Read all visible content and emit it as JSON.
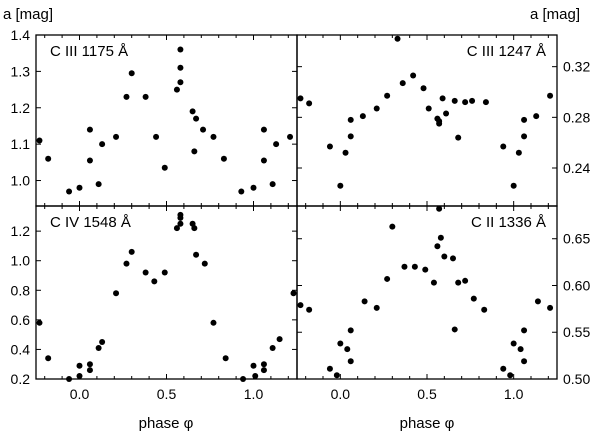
{
  "figure": {
    "ylabel_left": "a [mag]",
    "ylabel_right": "a [mag]",
    "xlabel_bottom_left": "phase φ",
    "xlabel_bottom_right": "phase φ",
    "x_ticks": [
      "0.0",
      "0.5",
      "1.0"
    ],
    "x_tick_values": [
      0.0,
      0.5,
      1.0
    ]
  },
  "chart_data": [
    {
      "type": "scatter",
      "title": "C III 1175 Å",
      "xlim": [
        -0.25,
        1.25
      ],
      "ylim": [
        0.93,
        1.4
      ],
      "y_ticks": [
        1.0,
        1.1,
        1.2,
        1.3,
        1.4
      ],
      "y_tick_labels": [
        "1.0",
        "1.1",
        "1.2",
        "1.3",
        "1.4"
      ],
      "y_axis_side": "left",
      "points": [
        [
          -0.23,
          1.11
        ],
        [
          -0.18,
          1.06
        ],
        [
          -0.06,
          0.97
        ],
        [
          0.0,
          0.98
        ],
        [
          0.06,
          1.055
        ],
        [
          0.06,
          1.14
        ],
        [
          0.11,
          0.99
        ],
        [
          0.13,
          1.1
        ],
        [
          0.21,
          1.12
        ],
        [
          0.27,
          1.23
        ],
        [
          0.3,
          1.295
        ],
        [
          0.38,
          1.23
        ],
        [
          0.44,
          1.12
        ],
        [
          0.49,
          1.035
        ],
        [
          0.56,
          1.25
        ],
        [
          0.58,
          1.36
        ],
        [
          0.58,
          1.31
        ],
        [
          0.58,
          1.27
        ],
        [
          0.65,
          1.19
        ],
        [
          0.66,
          1.08
        ],
        [
          0.67,
          1.17
        ],
        [
          0.71,
          1.14
        ],
        [
          0.77,
          1.12
        ],
        [
          0.83,
          1.06
        ],
        [
          0.93,
          0.97
        ],
        [
          1.0,
          0.98
        ],
        [
          1.06,
          1.055
        ],
        [
          1.06,
          1.14
        ],
        [
          1.11,
          0.99
        ],
        [
          1.13,
          1.1
        ],
        [
          1.21,
          1.12
        ]
      ]
    },
    {
      "type": "scatter",
      "title": "C III 1247 Å",
      "xlim": [
        -0.25,
        1.25
      ],
      "ylim": [
        0.21,
        0.345
      ],
      "y_ticks": [
        0.24,
        0.28,
        0.32
      ],
      "y_tick_labels": [
        "0.24",
        "0.28",
        "0.32"
      ],
      "y_axis_side": "right",
      "points": [
        [
          -0.23,
          0.295
        ],
        [
          -0.18,
          0.291
        ],
        [
          -0.06,
          0.257
        ],
        [
          0.0,
          0.226
        ],
        [
          0.03,
          0.252
        ],
        [
          0.06,
          0.265
        ],
        [
          0.06,
          0.278
        ],
        [
          0.13,
          0.281
        ],
        [
          0.21,
          0.287
        ],
        [
          0.27,
          0.297
        ],
        [
          0.33,
          0.342
        ],
        [
          0.36,
          0.307
        ],
        [
          0.42,
          0.313
        ],
        [
          0.48,
          0.303
        ],
        [
          0.51,
          0.287
        ],
        [
          0.56,
          0.279
        ],
        [
          0.57,
          0.277
        ],
        [
          0.57,
          0.275
        ],
        [
          0.59,
          0.295
        ],
        [
          0.61,
          0.283
        ],
        [
          0.66,
          0.293
        ],
        [
          0.68,
          0.264
        ],
        [
          0.72,
          0.292
        ],
        [
          0.76,
          0.293
        ],
        [
          0.84,
          0.292
        ],
        [
          0.94,
          0.257
        ],
        [
          1.0,
          0.226
        ],
        [
          1.03,
          0.252
        ],
        [
          1.06,
          0.265
        ],
        [
          1.06,
          0.278
        ],
        [
          1.13,
          0.281
        ],
        [
          1.21,
          0.297
        ]
      ]
    },
    {
      "type": "scatter",
      "title": "C IV 1548 Å",
      "xlim": [
        -0.25,
        1.25
      ],
      "ylim": [
        0.2,
        1.37
      ],
      "y_ticks": [
        0.2,
        0.4,
        0.6,
        0.8,
        1.0,
        1.2
      ],
      "y_tick_labels": [
        "0.2",
        "0.4",
        "0.6",
        "0.8",
        "1.0",
        "1.2"
      ],
      "y_axis_side": "left",
      "points": [
        [
          -0.23,
          0.58
        ],
        [
          -0.18,
          0.34
        ],
        [
          -0.06,
          0.2
        ],
        [
          0.0,
          0.29
        ],
        [
          0.0,
          0.22
        ],
        [
          0.06,
          0.3
        ],
        [
          0.06,
          0.26
        ],
        [
          0.11,
          0.41
        ],
        [
          0.13,
          0.45
        ],
        [
          0.21,
          0.78
        ],
        [
          0.27,
          0.98
        ],
        [
          0.3,
          1.06
        ],
        [
          0.38,
          0.92
        ],
        [
          0.43,
          0.86
        ],
        [
          0.49,
          0.92
        ],
        [
          0.56,
          1.22
        ],
        [
          0.58,
          1.31
        ],
        [
          0.58,
          1.29
        ],
        [
          0.58,
          1.25
        ],
        [
          0.65,
          1.25
        ],
        [
          0.66,
          1.22
        ],
        [
          0.67,
          1.04
        ],
        [
          0.72,
          0.98
        ],
        [
          0.77,
          0.58
        ],
        [
          0.84,
          0.34
        ],
        [
          0.94,
          0.2
        ],
        [
          1.0,
          0.29
        ],
        [
          1.01,
          0.22
        ],
        [
          1.06,
          0.3
        ],
        [
          1.06,
          0.26
        ],
        [
          1.11,
          0.41
        ],
        [
          1.15,
          0.47
        ],
        [
          1.23,
          0.78
        ]
      ]
    },
    {
      "type": "scatter",
      "title": "C II 1336 Å",
      "xlim": [
        -0.25,
        1.25
      ],
      "ylim": [
        0.5,
        0.685
      ],
      "y_ticks": [
        0.5,
        0.55,
        0.6,
        0.65
      ],
      "y_tick_labels": [
        "0.50",
        "0.55",
        "0.60",
        "0.65"
      ],
      "y_axis_side": "right",
      "points": [
        [
          -0.23,
          0.579
        ],
        [
          -0.18,
          0.574
        ],
        [
          -0.06,
          0.511
        ],
        [
          -0.02,
          0.504
        ],
        [
          0.0,
          0.538
        ],
        [
          0.04,
          0.532
        ],
        [
          0.06,
          0.519
        ],
        [
          0.06,
          0.552
        ],
        [
          0.14,
          0.583
        ],
        [
          0.21,
          0.576
        ],
        [
          0.27,
          0.607
        ],
        [
          0.3,
          0.663
        ],
        [
          0.37,
          0.62
        ],
        [
          0.43,
          0.62
        ],
        [
          0.49,
          0.617
        ],
        [
          0.54,
          0.603
        ],
        [
          0.56,
          0.642
        ],
        [
          0.57,
          0.682
        ],
        [
          0.58,
          0.651
        ],
        [
          0.6,
          0.631
        ],
        [
          0.65,
          0.629
        ],
        [
          0.66,
          0.553
        ],
        [
          0.68,
          0.603
        ],
        [
          0.72,
          0.605
        ],
        [
          0.77,
          0.586
        ],
        [
          0.83,
          0.574
        ],
        [
          0.94,
          0.511
        ],
        [
          0.98,
          0.504
        ],
        [
          1.0,
          0.538
        ],
        [
          1.04,
          0.532
        ],
        [
          1.06,
          0.519
        ],
        [
          1.06,
          0.552
        ],
        [
          1.14,
          0.583
        ],
        [
          1.21,
          0.576
        ]
      ]
    }
  ]
}
